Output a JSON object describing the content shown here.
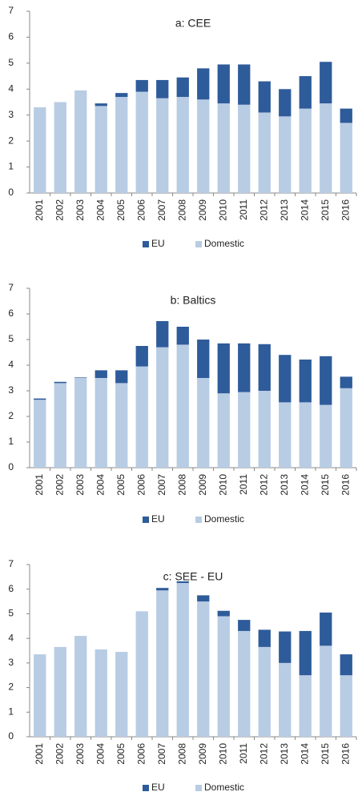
{
  "chart_data": [
    {
      "type": "bar",
      "stacked": true,
      "title": "a: CEE",
      "categories": [
        "2001",
        "2002",
        "2003",
        "2004",
        "2005",
        "2006",
        "2007",
        "2008",
        "2009",
        "2010",
        "2011",
        "2012",
        "2013",
        "2014",
        "2015",
        "2016"
      ],
      "series": [
        {
          "name": "EU",
          "color": "#2e5b9a",
          "values": [
            0,
            0,
            0,
            0.1,
            0.15,
            0.45,
            0.7,
            0.75,
            1.2,
            1.5,
            1.55,
            1.2,
            1.05,
            1.25,
            1.6,
            0.55
          ]
        },
        {
          "name": "Domestic",
          "color": "#b8cce4",
          "values": [
            3.3,
            3.5,
            3.95,
            3.35,
            3.7,
            3.9,
            3.65,
            3.7,
            3.6,
            3.45,
            3.4,
            3.1,
            2.95,
            3.25,
            3.45,
            2.7
          ]
        }
      ],
      "ylim": [
        0,
        7
      ],
      "yticks": [
        0,
        1,
        2,
        3,
        4,
        5,
        6,
        7
      ]
    },
    {
      "type": "bar",
      "stacked": true,
      "title": "b: Baltics",
      "categories": [
        "2001",
        "2002",
        "2003",
        "2004",
        "2005",
        "2006",
        "2007",
        "2008",
        "2009",
        "2010",
        "2011",
        "2012",
        "2013",
        "2014",
        "2015",
        "2016"
      ],
      "series": [
        {
          "name": "EU",
          "color": "#2e5b9a",
          "values": [
            0.05,
            0.05,
            0.02,
            0.3,
            0.5,
            0.8,
            1.02,
            0.7,
            1.5,
            1.95,
            1.9,
            1.82,
            1.85,
            1.67,
            1.9,
            0.45
          ]
        },
        {
          "name": "Domestic",
          "color": "#b8cce4",
          "values": [
            2.65,
            3.3,
            3.5,
            3.5,
            3.3,
            3.95,
            4.7,
            4.8,
            3.5,
            2.9,
            2.95,
            3.0,
            2.55,
            2.55,
            2.45,
            3.1
          ]
        }
      ],
      "ylim": [
        0,
        7
      ],
      "yticks": [
        0,
        1,
        2,
        3,
        4,
        5,
        6,
        7
      ]
    },
    {
      "type": "bar",
      "stacked": true,
      "title": "c: SEE - EU",
      "categories": [
        "2001",
        "2002",
        "2003",
        "2004",
        "2005",
        "2006",
        "2007",
        "2008",
        "2009",
        "2010",
        "2011",
        "2012",
        "2013",
        "2014",
        "2015",
        "2016"
      ],
      "series": [
        {
          "name": "EU",
          "color": "#2e5b9a",
          "values": [
            0,
            0,
            0,
            0,
            0,
            0,
            0.1,
            0.07,
            0.25,
            0.22,
            0.45,
            0.7,
            1.28,
            1.8,
            1.35,
            0.85
          ]
        },
        {
          "name": "Domestic",
          "color": "#b8cce4",
          "values": [
            3.35,
            3.65,
            4.1,
            3.55,
            3.45,
            5.1,
            5.95,
            6.25,
            5.5,
            4.9,
            4.3,
            3.65,
            3.0,
            2.5,
            3.7,
            2.5
          ]
        }
      ],
      "ylim": [
        0,
        7
      ],
      "yticks": [
        0,
        1,
        2,
        3,
        4,
        5,
        6,
        7
      ]
    }
  ]
}
